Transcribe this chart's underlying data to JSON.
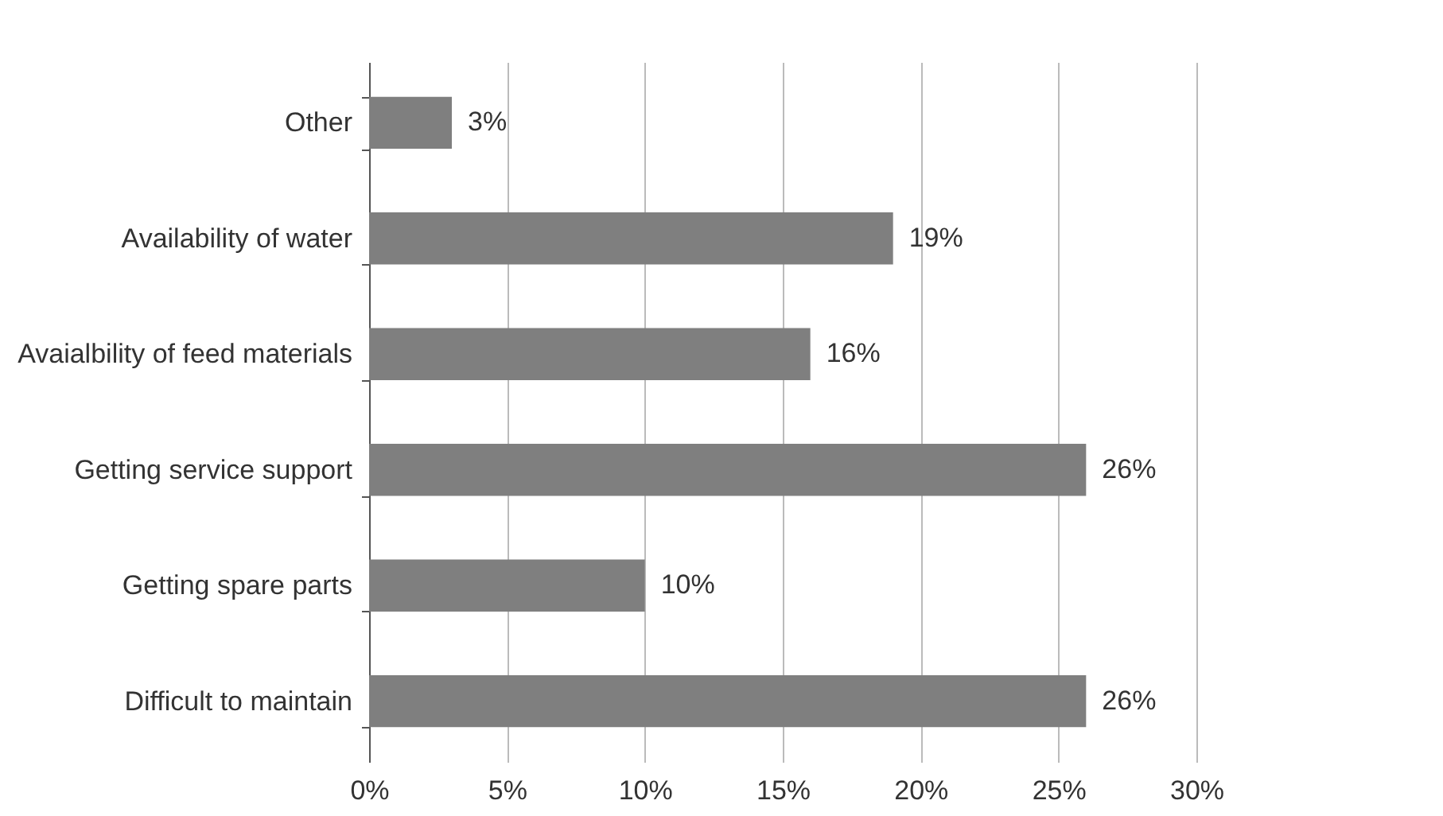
{
  "chart_data": {
    "type": "bar",
    "orientation": "horizontal",
    "categories": [
      "Other",
      "Availability of water",
      "Avaialbility of feed materials",
      "Getting service support",
      "Getting spare parts",
      "Difficult to maintain"
    ],
    "values": [
      3,
      19,
      16,
      26,
      10,
      26
    ],
    "value_labels": [
      "3%",
      "19%",
      "16%",
      "26%",
      "10%",
      "26%"
    ],
    "color": "#7f7f7f",
    "xlim": [
      0,
      30
    ],
    "xticks": [
      {
        "value": 0,
        "label": "0%"
      },
      {
        "value": 5,
        "label": "5%"
      },
      {
        "value": 10,
        "label": "10%"
      },
      {
        "value": 15,
        "label": "15%"
      },
      {
        "value": 20,
        "label": "20%"
      },
      {
        "value": 25,
        "label": "25%"
      },
      {
        "value": 30,
        "label": "30%"
      }
    ],
    "grid": "x"
  }
}
